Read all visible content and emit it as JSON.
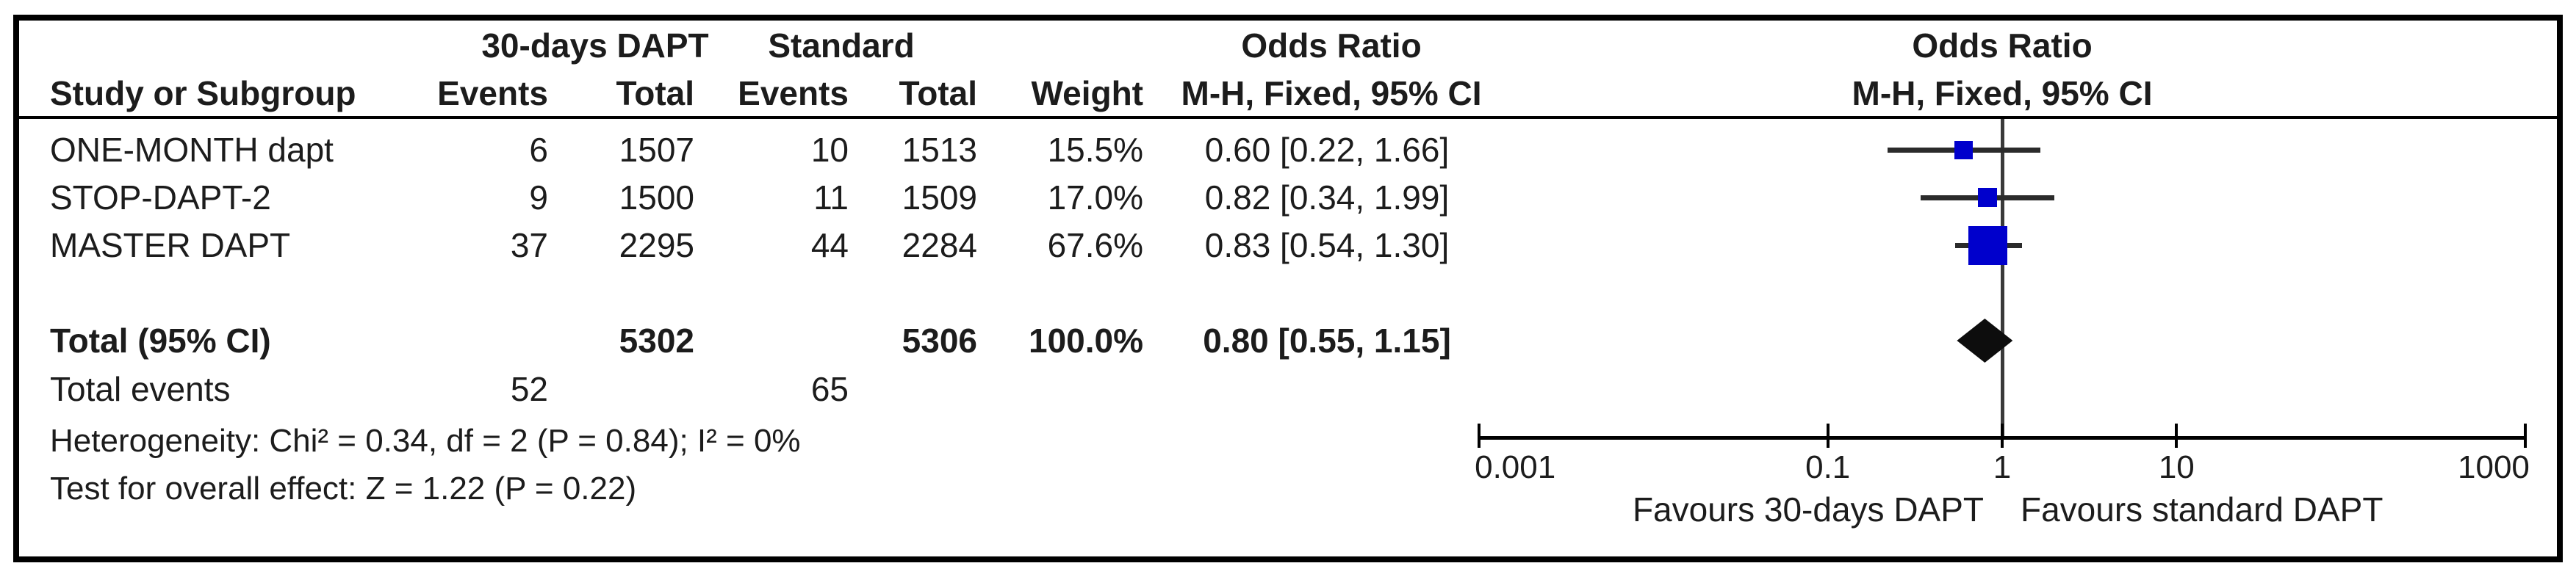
{
  "table": {
    "group1_header": "30-days DAPT",
    "group2_header": "Standard",
    "or_col_header_line1": "Odds Ratio",
    "or_col_header_line2": "M-H, Fixed, 95% CI",
    "plot_header_line1": "Odds Ratio",
    "plot_header_line2": "M-H, Fixed, 95% CI",
    "col_headers": {
      "study": "Study or Subgroup",
      "events": "Events",
      "total": "Total",
      "events2": "Events",
      "total2": "Total",
      "weight": "Weight"
    },
    "total_row": {
      "label": "Total (95% CI)",
      "total1": "5302",
      "total2": "5306",
      "weight_label": "100.0%",
      "or_label": "0.80 [0.55, 1.15]"
    },
    "total_events": {
      "label": "Total events",
      "group1": "52",
      "group2": "65"
    },
    "heterogeneity": "Heterogeneity: Chi² = 0.34, df = 2 (P = 0.84); I² = 0%",
    "overall_effect": "Test for overall effect: Z = 1.22 (P = 0.22)"
  },
  "chart_data": {
    "type": "forest",
    "effect_measure": "Odds Ratio, M-H, Fixed, 95% CI",
    "x_scale": "log10",
    "axis_range": [
      0.001,
      1000
    ],
    "axis_ticks": [
      {
        "value": 0.001,
        "label": "0.001"
      },
      {
        "value": 0.1,
        "label": "0.1"
      },
      {
        "value": 1,
        "label": "1"
      },
      {
        "value": 10,
        "label": "10"
      },
      {
        "value": 1000,
        "label": "1000"
      }
    ],
    "null_line_value": 1,
    "favours_left": "Favours 30-days DAPT",
    "favours_right": "Favours standard DAPT",
    "marker_color": "#0000CC",
    "studies": [
      {
        "name": "ONE-MONTH dapt",
        "events1": "6",
        "total1": "1507",
        "events2": "10",
        "total2": "1513",
        "weight_pct": 15.5,
        "weight_label": "15.5%",
        "or": 0.6,
        "ci_low": 0.22,
        "ci_high": 1.66,
        "or_label": "0.60 [0.22, 1.66]"
      },
      {
        "name": "STOP-DAPT-2",
        "events1": "9",
        "total1": "1500",
        "events2": "11",
        "total2": "1509",
        "weight_pct": 17.0,
        "weight_label": "17.0%",
        "or": 0.82,
        "ci_low": 0.34,
        "ci_high": 1.99,
        "or_label": "0.82 [0.34, 1.99]"
      },
      {
        "name": "MASTER DAPT",
        "events1": "37",
        "total1": "2295",
        "events2": "44",
        "total2": "2284",
        "weight_pct": 67.6,
        "weight_label": "67.6%",
        "or": 0.83,
        "ci_low": 0.54,
        "ci_high": 1.3,
        "or_label": "0.83 [0.54, 1.30]"
      }
    ],
    "total": {
      "or": 0.8,
      "ci_low": 0.55,
      "ci_high": 1.15
    }
  }
}
